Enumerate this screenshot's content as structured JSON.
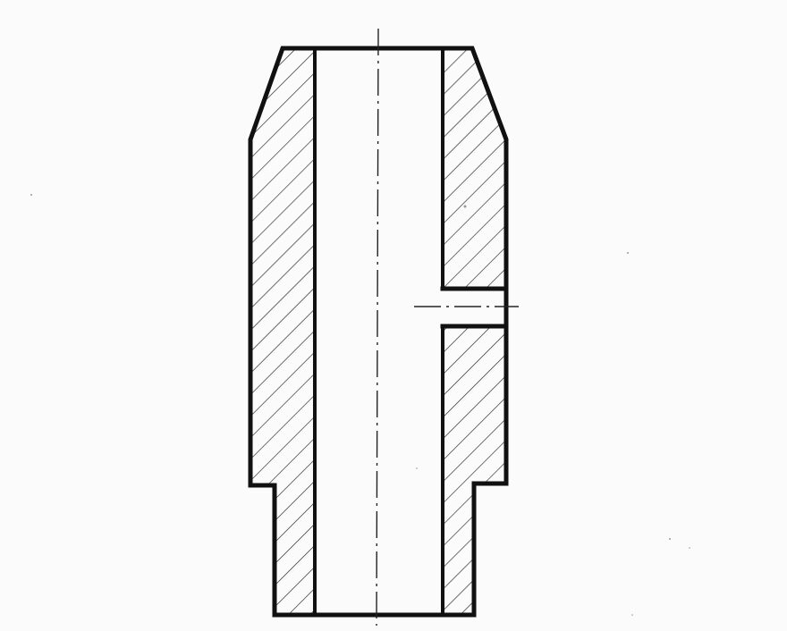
{
  "drawing": {
    "type": "sectional-view",
    "subject": "bushing-with-cross-hole",
    "hatch_pattern": "diagonal-45",
    "colors": {
      "paper": "#fbfbfb",
      "ink": "#111111"
    },
    "features": [
      "chamfered-top-outer-edge",
      "through-bore",
      "stepped-lower-shoulder",
      "radial-cross-hole",
      "vertical-centerline",
      "hole-axis-centerline"
    ]
  }
}
